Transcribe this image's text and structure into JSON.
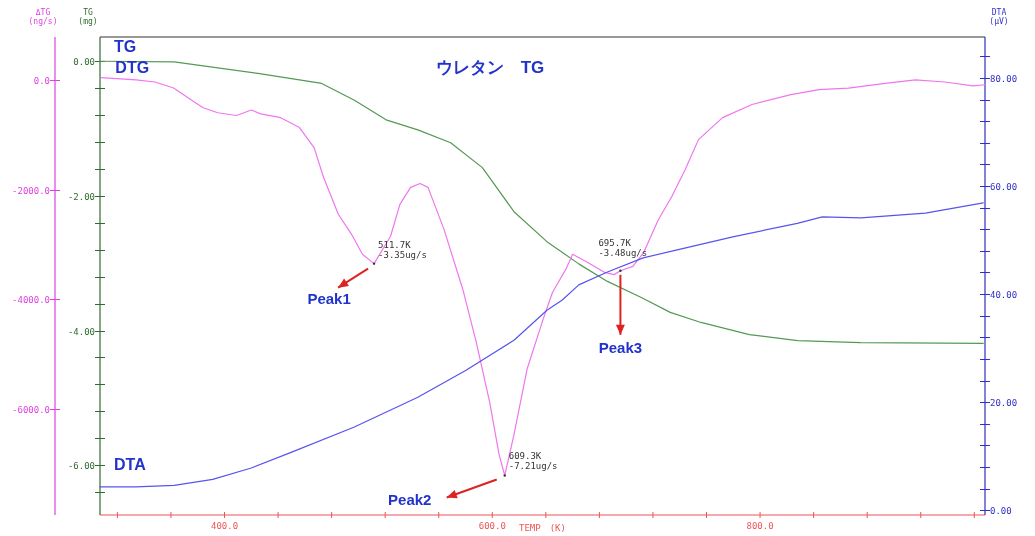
{
  "chart_data": {
    "type": "line",
    "title": "ウレタン　TG",
    "xlabel": "TEMP　(K)",
    "ylabel": "ΔTG\n(ng/s)",
    "y2label": "DTA\n(µV)",
    "y3label": "TG\n(mg)",
    "xlim": [
      307,
      968
    ],
    "xticks": [
      {
        "value": 320,
        "label": null
      },
      {
        "value": 360,
        "label": null
      },
      {
        "value": 400,
        "label": "400.0"
      },
      {
        "value": 440,
        "label": null
      },
      {
        "value": 480,
        "label": null
      },
      {
        "value": 520,
        "label": null
      },
      {
        "value": 560,
        "label": null
      },
      {
        "value": 600,
        "label": "600.0"
      },
      {
        "value": 640,
        "label": null
      },
      {
        "value": 680,
        "label": null
      },
      {
        "value": 720,
        "label": null
      },
      {
        "value": 760,
        "label": null
      },
      {
        "value": 800,
        "label": "800.0"
      },
      {
        "value": 840,
        "label": null
      },
      {
        "value": 880,
        "label": null
      },
      {
        "value": 920,
        "label": null
      },
      {
        "value": 960,
        "label": null
      }
    ],
    "y3lim": [
      -6.74,
      0.36
    ],
    "y3ticks": [
      {
        "value": 0,
        "label": "0.00"
      },
      {
        "value": -0.4,
        "label": null
      },
      {
        "value": -0.8,
        "label": null
      },
      {
        "value": -1.2,
        "label": null
      },
      {
        "value": -1.6,
        "label": null
      },
      {
        "value": -2,
        "label": "-2.00"
      },
      {
        "value": -2.4,
        "label": null
      },
      {
        "value": -2.8,
        "label": null
      },
      {
        "value": -3.2,
        "label": null
      },
      {
        "value": -3.6,
        "label": null
      },
      {
        "value": -4,
        "label": "-4.00"
      },
      {
        "value": -4.4,
        "label": null
      },
      {
        "value": -4.8,
        "label": null
      },
      {
        "value": -5.2,
        "label": null
      },
      {
        "value": -5.6,
        "label": null
      },
      {
        "value": -6,
        "label": "-6.00"
      },
      {
        "value": -6.4,
        "label": null
      }
    ],
    "y2lim": [
      -0.9,
      87.6
    ],
    "y2ticks": [
      {
        "value": 0,
        "label": "0.00"
      },
      {
        "value": 4,
        "label": null
      },
      {
        "value": 8,
        "label": null
      },
      {
        "value": 12,
        "label": null
      },
      {
        "value": 16,
        "label": null
      },
      {
        "value": 20,
        "label": "20.00"
      },
      {
        "value": 24,
        "label": null
      },
      {
        "value": 28,
        "label": null
      },
      {
        "value": 32,
        "label": null
      },
      {
        "value": 36,
        "label": null
      },
      {
        "value": 40,
        "label": "40.00"
      },
      {
        "value": 44,
        "label": null
      },
      {
        "value": 48,
        "label": null
      },
      {
        "value": 52,
        "label": null
      },
      {
        "value": 56,
        "label": null
      },
      {
        "value": 60,
        "label": "60.00"
      },
      {
        "value": 64,
        "label": null
      },
      {
        "value": 68,
        "label": null
      },
      {
        "value": 72,
        "label": null
      },
      {
        "value": 76,
        "label": null
      },
      {
        "value": 80,
        "label": "80.00"
      },
      {
        "value": 84,
        "label": null
      }
    ],
    "ylim": [
      -7930,
      780
    ],
    "yticks": [
      {
        "value": 0,
        "label": "0.0"
      },
      {
        "value": -2000,
        "label": "-2000.0"
      },
      {
        "value": -4000,
        "label": "-4000.0"
      },
      {
        "value": -6000,
        "label": "-6000.0"
      }
    ],
    "series": [
      {
        "name": "TG",
        "color": "#559955",
        "axis": "y3",
        "x": [
          307,
          362.4,
          425,
          472.6,
          497,
          520.7,
          544.4,
          568.9,
          592.6,
          616.4,
          640.8,
          664.6,
          686,
          711.3,
          732.9,
          755.9,
          792,
          828,
          875,
          966.7
        ],
        "values": [
          0.0,
          -0.01,
          -0.18,
          -0.33,
          -0.58,
          -0.87,
          -1.02,
          -1.21,
          -1.58,
          -2.24,
          -2.68,
          -3.01,
          -3.27,
          -3.51,
          -3.73,
          -3.88,
          -4.06,
          -4.15,
          -4.18,
          -4.19
        ]
      },
      {
        "name": "DTG",
        "color": "#ee77ee",
        "axis": "y",
        "x": [
          308,
          334,
          348,
          362,
          373,
          384,
          395,
          409,
          420,
          427,
          442,
          456,
          467,
          474,
          485,
          495,
          503,
          511.7,
          524,
          531,
          539,
          546,
          552,
          564,
          578,
          588,
          598,
          605,
          609.3,
          616,
          626,
          638,
          645,
          655,
          660,
          670,
          684,
          691,
          695.7,
          705,
          713,
          724,
          734,
          744,
          754,
          772,
          794,
          823,
          844,
          866,
          895,
          916,
          938,
          959,
          968
        ],
        "values": [
          40,
          0,
          -40,
          -150,
          -330,
          -510,
          -600,
          -650,
          -550,
          -620,
          -690,
          -870,
          -1240,
          -1780,
          -2450,
          -2820,
          -3180,
          -3350,
          -2850,
          -2270,
          -1960,
          -1890,
          -1960,
          -2730,
          -3820,
          -4780,
          -5870,
          -6820,
          -7210,
          -6490,
          -5270,
          -4360,
          -3870,
          -3450,
          -3180,
          -3310,
          -3510,
          -3550,
          -3480,
          -3400,
          -3150,
          -2550,
          -2130,
          -1640,
          -1090,
          -690,
          -450,
          -270,
          -180,
          -150,
          -60,
          0,
          -40,
          -110,
          -90
        ]
      },
      {
        "name": "DTA",
        "color": "#5555ee",
        "axis": "y2",
        "x": [
          307,
          333.6,
          362.4,
          391.2,
          420,
          448.8,
          497,
          544.4,
          580.4,
          616.4,
          640.8,
          652.3,
          664.6,
          686,
          712.7,
          736.5,
          779.6,
          827.8,
          846.5,
          875.3,
          923.5,
          966.7
        ],
        "values": [
          4.3,
          4.3,
          4.6,
          5.7,
          7.8,
          10.6,
          15.4,
          20.9,
          25.9,
          31.5,
          37.0,
          38.9,
          41.7,
          44.1,
          46.7,
          48.1,
          50.6,
          53.1,
          54.3,
          54.1,
          55.0,
          56.9
        ]
      }
    ],
    "annotations": [
      {
        "text": "511.7K\n-3.35ug/s",
        "x": 511.7,
        "y": -3350
      },
      {
        "text": "Peak1",
        "x": 511.7,
        "y": -3350
      },
      {
        "text": "609.3K\n-7.21ug/s",
        "x": 609.3,
        "y": -7210
      },
      {
        "text": "Peak2",
        "x": 609.3,
        "y": -7210
      },
      {
        "text": "695.7K\n-3.48ug/s",
        "x": 695.7,
        "y": -3480
      },
      {
        "text": "Peak3",
        "x": 695.7,
        "y": -3480
      }
    ]
  }
}
